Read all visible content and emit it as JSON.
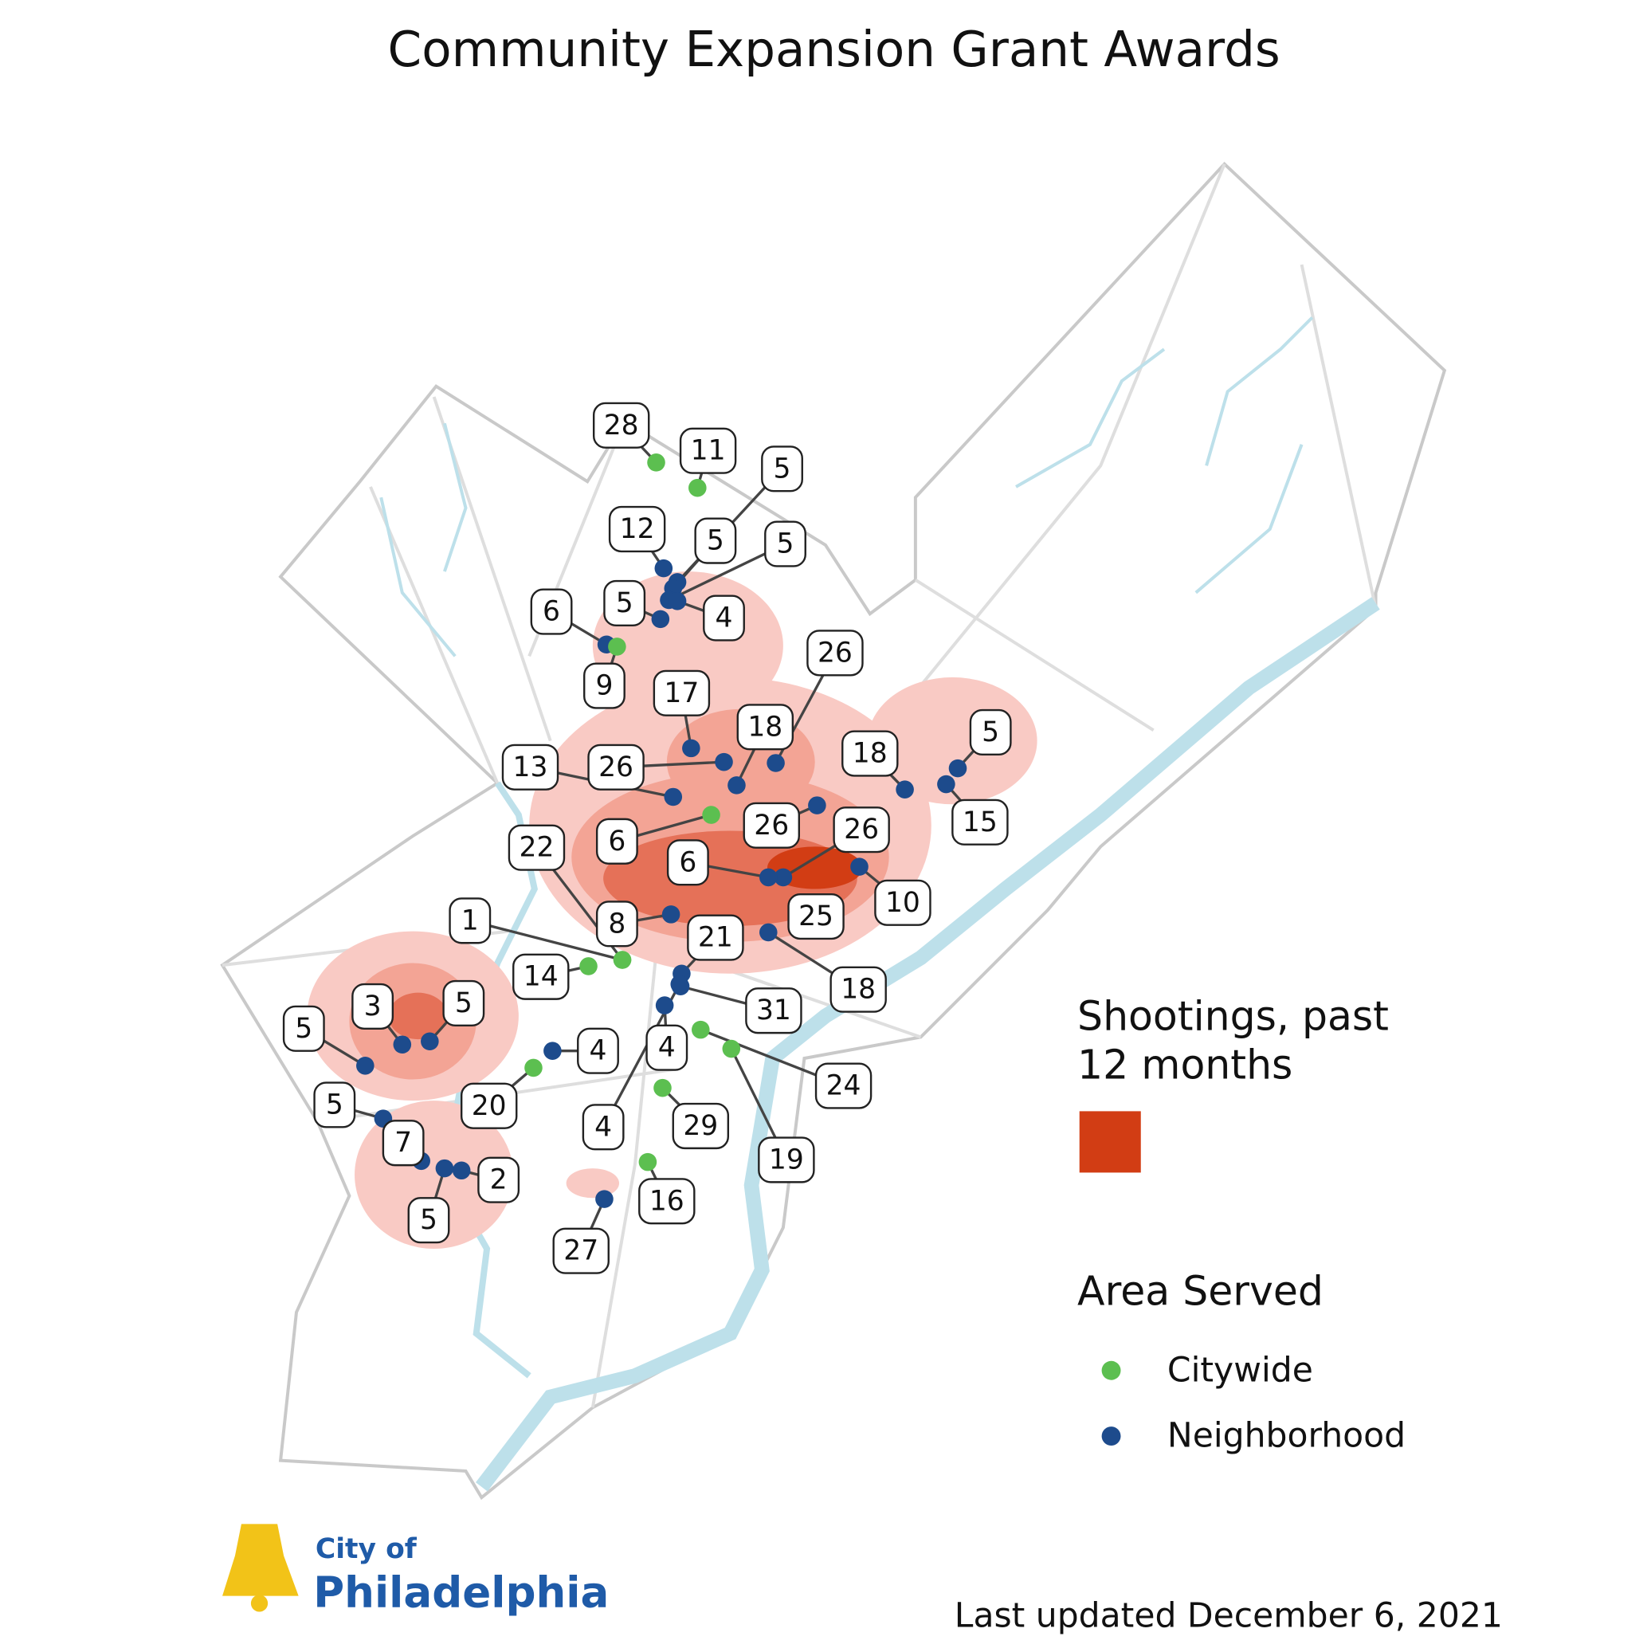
{
  "title": "Community Expansion Grant Awards",
  "legend": {
    "heat_title": [
      "Shootings, past",
      "12 months"
    ],
    "area_title": "Area Served",
    "citywide": "Citywide",
    "neighborhood": "Neighborhood"
  },
  "logo": {
    "line1": "City of",
    "line2": "Philadelphia"
  },
  "footer": "Last updated December 6, 2021",
  "markers": [
    {
      "label": "28"
    },
    {
      "label": "11"
    },
    {
      "label": "5"
    },
    {
      "label": "12"
    },
    {
      "label": "5"
    },
    {
      "label": "5"
    },
    {
      "label": "6"
    },
    {
      "label": "5"
    },
    {
      "label": "4"
    },
    {
      "label": "9"
    },
    {
      "label": "17"
    },
    {
      "label": "26"
    },
    {
      "label": "18"
    },
    {
      "label": "13"
    },
    {
      "label": "26"
    },
    {
      "label": "18"
    },
    {
      "label": "5"
    },
    {
      "label": "15"
    },
    {
      "label": "6"
    },
    {
      "label": "26"
    },
    {
      "label": "26"
    },
    {
      "label": "22"
    },
    {
      "label": "6"
    },
    {
      "label": "10"
    },
    {
      "label": "8"
    },
    {
      "label": "25"
    },
    {
      "label": "1"
    },
    {
      "label": "21"
    },
    {
      "label": "14"
    },
    {
      "label": "18"
    },
    {
      "label": "3"
    },
    {
      "label": "5"
    },
    {
      "label": "31"
    },
    {
      "label": "5"
    },
    {
      "label": "4"
    },
    {
      "label": "4"
    },
    {
      "label": "24"
    },
    {
      "label": "5"
    },
    {
      "label": "20"
    },
    {
      "label": "4"
    },
    {
      "label": "29"
    },
    {
      "label": "7"
    },
    {
      "label": "19"
    },
    {
      "label": "2"
    },
    {
      "label": "16"
    },
    {
      "label": "5"
    },
    {
      "label": "27"
    }
  ]
}
